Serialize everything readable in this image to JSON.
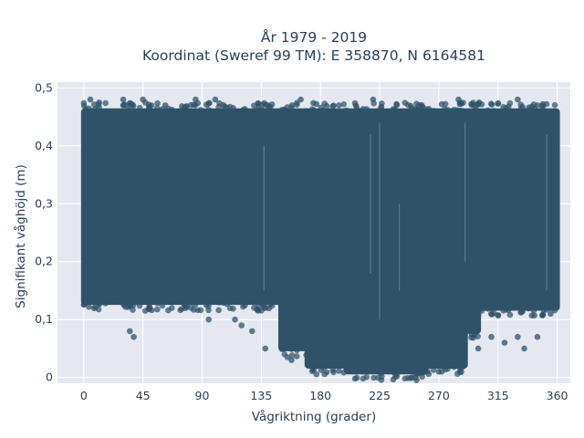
{
  "chart_data": {
    "type": "scatter",
    "title_line1": "År 1979 - 2019",
    "title_line2": "Koordinat (Sweref 99 TM): E 358870, N 6164581",
    "xlabel": "Vågriktning (grader)",
    "ylabel": "Signifikant våghöjd (m)",
    "xlim": [
      -20,
      370
    ],
    "ylim": [
      -0.01,
      0.51
    ],
    "x_ticks": [
      0,
      45,
      90,
      135,
      180,
      225,
      270,
      315,
      360
    ],
    "x_tick_labels": [
      "0",
      "45",
      "90",
      "135",
      "180",
      "225",
      "270",
      "315",
      "360"
    ],
    "y_ticks": [
      0,
      0.1,
      0.2,
      0.3,
      0.4,
      0.5
    ],
    "y_tick_labels": [
      "0",
      "0,1",
      "0,2",
      "0,3",
      "0,4",
      "0,5"
    ],
    "marker_color": "#2f5269",
    "plot_bgcolor": "#e5e8f0",
    "grid": true,
    "legend": "none",
    "series": [
      {
        "envelope": [
          {
            "x_from": 0,
            "x_to": 150,
            "y_min": 0.13,
            "y_max": 0.46
          },
          {
            "x_from": 150,
            "x_to": 170,
            "y_min": 0.05,
            "y_max": 0.46
          },
          {
            "x_from": 170,
            "x_to": 200,
            "y_min": 0.02,
            "y_max": 0.46
          },
          {
            "x_from": 200,
            "x_to": 260,
            "y_min": 0.01,
            "y_max": 0.46
          },
          {
            "x_from": 260,
            "x_to": 290,
            "y_min": 0.02,
            "y_max": 0.46
          },
          {
            "x_from": 290,
            "x_to": 300,
            "y_min": 0.08,
            "y_max": 0.46
          },
          {
            "x_from": 300,
            "x_to": 360,
            "y_min": 0.12,
            "y_max": 0.46
          }
        ],
        "points": [
          {
            "x": 5,
            "y": 0.48
          },
          {
            "x": 30,
            "y": 0.48
          },
          {
            "x": 45,
            "y": 0.48
          },
          {
            "x": 62,
            "y": 0.47
          },
          {
            "x": 85,
            "y": 0.48
          },
          {
            "x": 100,
            "y": 0.48
          },
          {
            "x": 140,
            "y": 0.47
          },
          {
            "x": 165,
            "y": 0.48
          },
          {
            "x": 220,
            "y": 0.48
          },
          {
            "x": 255,
            "y": 0.47
          },
          {
            "x": 285,
            "y": 0.48
          },
          {
            "x": 330,
            "y": 0.48
          },
          {
            "x": 345,
            "y": 0.47
          },
          {
            "x": 35,
            "y": 0.08
          },
          {
            "x": 38,
            "y": 0.07
          },
          {
            "x": 95,
            "y": 0.1
          },
          {
            "x": 115,
            "y": 0.1
          },
          {
            "x": 120,
            "y": 0.09
          },
          {
            "x": 128,
            "y": 0.08
          },
          {
            "x": 138,
            "y": 0.05
          },
          {
            "x": 158,
            "y": 0.03
          },
          {
            "x": 212,
            "y": 0.01
          },
          {
            "x": 235,
            "y": 0.01
          },
          {
            "x": 250,
            "y": 0.01
          },
          {
            "x": 270,
            "y": 0.01
          },
          {
            "x": 300,
            "y": 0.05
          },
          {
            "x": 310,
            "y": 0.07
          },
          {
            "x": 320,
            "y": 0.06
          },
          {
            "x": 330,
            "y": 0.07
          },
          {
            "x": 335,
            "y": 0.05
          },
          {
            "x": 345,
            "y": 0.07
          },
          {
            "x": 355,
            "y": 0.11
          }
        ]
      }
    ]
  }
}
